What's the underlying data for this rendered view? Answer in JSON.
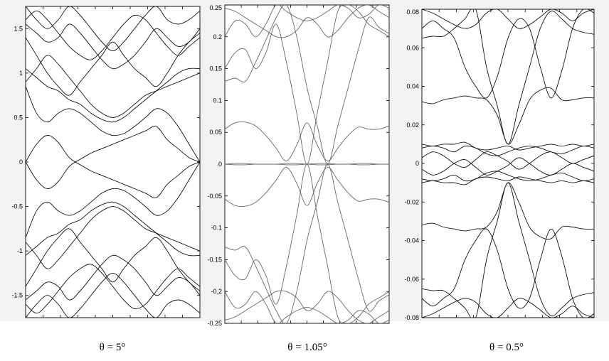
{
  "chart_data": [
    {
      "type": "line",
      "caption": "θ = 5°",
      "ylim": [
        -1.75,
        1.75
      ],
      "yticks": [
        -1.5,
        -1,
        -0.5,
        0,
        0.5,
        1,
        1.5
      ],
      "ytick_labels": [
        "-1.5",
        "-1",
        "-0.5",
        "0",
        "0.5",
        "1",
        "1.5"
      ],
      "xticks": 10,
      "grid": false,
      "line_color": "#111111",
      "x": [
        0,
        0.0625,
        0.125,
        0.1875,
        0.25,
        0.3125,
        0.375,
        0.4375,
        0.5,
        0.5625,
        0.625,
        0.6875,
        0.75,
        0.8125,
        0.875,
        0.9375,
        1
      ],
      "series": [
        {
          "values": [
            0.0,
            0.2,
            0.3,
            0.22,
            0.05,
            -0.03,
            -0.1,
            -0.15,
            -0.2,
            -0.25,
            -0.3,
            -0.35,
            -0.4,
            -0.25,
            -0.15,
            -0.05,
            0.0
          ]
        },
        {
          "values": [
            0.0,
            -0.2,
            -0.3,
            -0.22,
            -0.05,
            0.03,
            0.1,
            0.15,
            0.2,
            0.25,
            0.3,
            0.35,
            0.4,
            0.25,
            0.15,
            0.05,
            0.0
          ]
        },
        {
          "values": [
            0.85,
            0.55,
            0.45,
            0.55,
            0.6,
            0.55,
            0.45,
            0.35,
            0.3,
            0.32,
            0.4,
            0.5,
            0.6,
            0.55,
            0.4,
            0.2,
            0.0
          ]
        },
        {
          "values": [
            -0.85,
            -0.55,
            -0.45,
            -0.55,
            -0.6,
            -0.55,
            -0.45,
            -0.35,
            -0.3,
            -0.32,
            -0.4,
            -0.5,
            -0.6,
            -0.55,
            -0.4,
            -0.2,
            0.0
          ]
        },
        {
          "values": [
            0.9,
            1.05,
            1.2,
            1.1,
            0.95,
            0.8,
            0.65,
            0.55,
            0.5,
            0.55,
            0.65,
            0.75,
            0.8,
            0.85,
            0.9,
            0.95,
            1.0
          ]
        },
        {
          "values": [
            -0.9,
            -1.05,
            -1.2,
            -1.1,
            -0.95,
            -0.8,
            -0.65,
            -0.55,
            -0.5,
            -0.55,
            -0.65,
            -0.75,
            -0.8,
            -0.85,
            -0.9,
            -0.95,
            -1.0
          ]
        },
        {
          "values": [
            1.05,
            0.95,
            0.85,
            0.8,
            0.7,
            0.65,
            0.55,
            0.48,
            0.45,
            0.5,
            0.6,
            0.7,
            0.8,
            0.9,
            1.0,
            1.05,
            1.05
          ]
        },
        {
          "values": [
            -1.05,
            -0.95,
            -0.85,
            -0.8,
            -0.7,
            -0.65,
            -0.55,
            -0.48,
            -0.45,
            -0.5,
            -0.6,
            -0.7,
            -0.8,
            -0.9,
            -1.0,
            -1.05,
            -1.05
          ]
        },
        {
          "values": [
            1.4,
            1.2,
            1.0,
            0.85,
            0.75,
            0.9,
            1.05,
            1.2,
            1.35,
            1.2,
            1.05,
            0.95,
            0.85,
            1.0,
            1.2,
            1.35,
            1.45
          ]
        },
        {
          "values": [
            -1.4,
            -1.2,
            -1.0,
            -0.85,
            -0.75,
            -0.9,
            -1.05,
            -1.2,
            -1.35,
            -1.2,
            -1.05,
            -0.95,
            -0.85,
            -1.0,
            -1.2,
            -1.35,
            -1.45
          ]
        },
        {
          "values": [
            1.55,
            1.45,
            1.35,
            1.4,
            1.55,
            1.45,
            1.3,
            1.15,
            1.05,
            1.1,
            1.2,
            1.35,
            1.5,
            1.4,
            1.3,
            1.35,
            1.5
          ]
        },
        {
          "values": [
            -1.55,
            -1.45,
            -1.35,
            -1.4,
            -1.55,
            -1.45,
            -1.3,
            -1.15,
            -1.05,
            -1.1,
            -1.2,
            -1.35,
            -1.5,
            -1.4,
            -1.3,
            -1.35,
            -1.5
          ]
        },
        {
          "values": [
            1.75,
            1.6,
            1.5,
            1.6,
            1.75,
            1.65,
            1.5,
            1.35,
            1.25,
            1.35,
            1.5,
            1.65,
            1.75,
            1.6,
            1.55,
            1.6,
            1.7
          ]
        },
        {
          "values": [
            -1.75,
            -1.6,
            -1.5,
            -1.6,
            -1.75,
            -1.65,
            -1.5,
            -1.35,
            -1.25,
            -1.35,
            -1.5,
            -1.65,
            -1.75,
            -1.6,
            -1.55,
            -1.6,
            -1.7
          ]
        },
        {
          "values": [
            1.6,
            1.7,
            1.6,
            1.45,
            1.3,
            1.2,
            1.15,
            1.25,
            1.4,
            1.55,
            1.65,
            1.6,
            1.45,
            1.3,
            1.2,
            1.3,
            1.4
          ]
        },
        {
          "values": [
            -1.6,
            -1.7,
            -1.6,
            -1.45,
            -1.3,
            -1.2,
            -1.15,
            -1.25,
            -1.4,
            -1.55,
            -1.65,
            -1.6,
            -1.45,
            -1.3,
            -1.2,
            -1.3,
            -1.4
          ]
        }
      ]
    },
    {
      "type": "line",
      "caption": "θ = 1.05°",
      "ylim": [
        -0.25,
        0.25
      ],
      "yticks": [
        -0.25,
        -0.2,
        -0.15,
        -0.1,
        -0.05,
        0,
        0.05,
        0.1,
        0.15,
        0.2,
        0.25
      ],
      "ytick_labels": [
        "-0.25",
        "-0.2",
        "-0.15",
        "-0.1",
        "-0.05",
        "0",
        "0.05",
        "0.1",
        "0.15",
        "0.2",
        "0.25"
      ],
      "xticks": 10,
      "grid": false,
      "line_color": "#666666",
      "x": [
        0,
        0.0625,
        0.125,
        0.1875,
        0.25,
        0.3125,
        0.375,
        0.4375,
        0.5,
        0.5625,
        0.625,
        0.6875,
        0.75,
        0.8125,
        0.875,
        0.9375,
        1
      ],
      "series": [
        {
          "values": [
            0.0,
            0.001,
            0.001,
            0.0,
            0.0,
            0.0,
            0.001,
            0.001,
            0.0,
            -0.001,
            -0.001,
            0.0,
            0.0,
            0.001,
            0.001,
            0.0,
            0.0
          ]
        },
        {
          "values": [
            0.0,
            -0.001,
            -0.001,
            0.0,
            0.0,
            0.0,
            -0.001,
            -0.001,
            0.0,
            0.001,
            0.001,
            0.0,
            0.0,
            -0.001,
            -0.001,
            0.0,
            0.0
          ]
        },
        {
          "values": [
            0.055,
            0.065,
            0.066,
            0.06,
            0.045,
            0.025,
            0.005,
            0.03,
            0.065,
            0.03,
            0.005,
            0.025,
            0.045,
            0.058,
            0.055,
            0.055,
            0.06
          ]
        },
        {
          "values": [
            -0.055,
            -0.065,
            -0.066,
            -0.06,
            -0.045,
            -0.025,
            -0.005,
            -0.03,
            -0.065,
            -0.03,
            -0.005,
            -0.025,
            -0.045,
            -0.058,
            -0.055,
            -0.055,
            -0.06
          ]
        },
        {
          "values": [
            0.13,
            0.135,
            0.13,
            0.16,
            0.195,
            0.23,
            0.25,
            0.2,
            0.12,
            0.06,
            0.0,
            0.06,
            0.12,
            0.18,
            0.23,
            0.215,
            0.205
          ]
        },
        {
          "values": [
            -0.13,
            -0.135,
            -0.13,
            -0.16,
            -0.195,
            -0.23,
            -0.25,
            -0.2,
            -0.12,
            -0.06,
            0.0,
            -0.06,
            -0.12,
            -0.18,
            -0.23,
            -0.215,
            -0.205
          ]
        },
        {
          "values": [
            0.15,
            0.175,
            0.18,
            0.15,
            0.175,
            0.22,
            0.16,
            0.08,
            0.0,
            0.08,
            0.16,
            0.24,
            0.25,
            0.24,
            0.22,
            0.21,
            0.2
          ]
        },
        {
          "values": [
            -0.15,
            -0.175,
            -0.18,
            -0.15,
            -0.175,
            -0.22,
            -0.16,
            -0.08,
            0.0,
            -0.08,
            -0.16,
            -0.24,
            -0.25,
            -0.24,
            -0.22,
            -0.21,
            -0.2
          ]
        },
        {
          "values": [
            0.2,
            0.225,
            0.22,
            0.2,
            0.22,
            0.25,
            0.24,
            0.23,
            0.225,
            0.23,
            0.24,
            0.25,
            0.245,
            0.23,
            0.235,
            0.25,
            0.245
          ]
        },
        {
          "values": [
            -0.2,
            -0.225,
            -0.22,
            -0.2,
            -0.22,
            -0.25,
            -0.24,
            -0.23,
            -0.225,
            -0.23,
            -0.24,
            -0.25,
            -0.245,
            -0.23,
            -0.235,
            -0.25,
            -0.245
          ]
        },
        {
          "values": [
            0.245,
            0.24,
            0.23,
            0.22,
            0.21,
            0.2,
            0.2,
            0.21,
            0.23,
            0.22,
            0.2,
            0.21,
            0.23,
            0.245,
            0.25,
            0.24,
            0.23
          ]
        },
        {
          "values": [
            -0.245,
            -0.24,
            -0.23,
            -0.22,
            -0.21,
            -0.2,
            -0.2,
            -0.21,
            -0.23,
            -0.22,
            -0.2,
            -0.21,
            -0.23,
            -0.245,
            -0.25,
            -0.24,
            -0.23
          ]
        }
      ]
    },
    {
      "type": "line",
      "caption": "θ = 0.5°",
      "ylim": [
        -0.08,
        0.08
      ],
      "yticks": [
        -0.08,
        -0.06,
        -0.04,
        -0.02,
        0,
        0.02,
        0.04,
        0.06,
        0.08
      ],
      "ytick_labels": [
        "-0.08",
        "-0.06",
        "-0.04",
        "-0.02",
        "0",
        "0.02",
        "0.04",
        "0.06",
        "0.08"
      ],
      "xticks": 10,
      "grid": false,
      "line_color": "#111111",
      "x": [
        0,
        0.0625,
        0.125,
        0.1875,
        0.25,
        0.3125,
        0.375,
        0.4375,
        0.5,
        0.5625,
        0.625,
        0.6875,
        0.75,
        0.8125,
        0.875,
        0.9375,
        1
      ],
      "series": [
        {
          "values": [
            0.008,
            0.009,
            0.008,
            0.006,
            0.009,
            0.008,
            0.005,
            0.004,
            0.006,
            0.008,
            0.009,
            0.008,
            0.006,
            0.005,
            0.007,
            0.009,
            0.008
          ]
        },
        {
          "values": [
            -0.008,
            -0.009,
            -0.008,
            -0.006,
            -0.009,
            -0.008,
            -0.005,
            -0.004,
            -0.006,
            -0.008,
            -0.009,
            -0.008,
            -0.006,
            -0.005,
            -0.007,
            -0.009,
            -0.008
          ]
        },
        {
          "values": [
            0.003,
            0.006,
            0.004,
            0.0,
            -0.002,
            0.002,
            0.006,
            0.004,
            0.001,
            -0.003,
            0.0,
            0.004,
            0.006,
            0.003,
            0.0,
            0.002,
            0.004
          ]
        },
        {
          "values": [
            -0.003,
            -0.006,
            -0.004,
            0.0,
            0.002,
            -0.002,
            -0.006,
            -0.004,
            -0.001,
            0.003,
            0.0,
            -0.004,
            -0.006,
            -0.003,
            0.0,
            -0.002,
            -0.004
          ]
        },
        {
          "values": [
            0.01,
            0.009,
            0.01,
            0.01,
            0.011,
            0.008,
            0.007,
            0.008,
            0.009,
            0.007,
            0.008,
            0.009,
            0.01,
            0.009,
            0.01,
            0.009,
            0.01
          ]
        },
        {
          "values": [
            -0.01,
            -0.009,
            -0.01,
            -0.01,
            -0.011,
            -0.008,
            -0.007,
            -0.008,
            -0.009,
            -0.007,
            -0.008,
            -0.009,
            -0.01,
            -0.009,
            -0.01,
            -0.009,
            -0.01
          ]
        },
        {
          "values": [
            0.032,
            0.031,
            0.033,
            0.034,
            0.035,
            0.034,
            0.033,
            0.025,
            0.01,
            0.02,
            0.033,
            0.038,
            0.039,
            0.033,
            0.033,
            0.034,
            0.034
          ]
        },
        {
          "values": [
            -0.032,
            -0.031,
            -0.033,
            -0.034,
            -0.035,
            -0.034,
            -0.033,
            -0.025,
            -0.01,
            -0.02,
            -0.033,
            -0.038,
            -0.039,
            -0.033,
            -0.033,
            -0.034,
            -0.034
          ]
        },
        {
          "values": [
            0.065,
            0.066,
            0.066,
            0.07,
            0.075,
            0.08,
            0.05,
            0.03,
            0.01,
            0.03,
            0.05,
            0.07,
            0.079,
            0.075,
            0.07,
            0.068,
            0.067
          ]
        },
        {
          "values": [
            -0.065,
            -0.066,
            -0.066,
            -0.07,
            -0.075,
            -0.08,
            -0.05,
            -0.03,
            -0.01,
            -0.03,
            -0.05,
            -0.07,
            -0.079,
            -0.075,
            -0.07,
            -0.068,
            -0.067
          ]
        },
        {
          "values": [
            0.07,
            0.074,
            0.07,
            0.065,
            0.05,
            0.04,
            0.034,
            0.045,
            0.065,
            0.075,
            0.07,
            0.05,
            0.034,
            0.048,
            0.07,
            0.08,
            0.078
          ]
        },
        {
          "values": [
            -0.07,
            -0.074,
            -0.07,
            -0.065,
            -0.05,
            -0.04,
            -0.034,
            -0.045,
            -0.065,
            -0.075,
            -0.07,
            -0.05,
            -0.034,
            -0.048,
            -0.07,
            -0.08,
            -0.078
          ]
        },
        {
          "values": [
            0.08,
            0.078,
            0.075,
            0.072,
            0.07,
            0.072,
            0.078,
            0.08,
            0.075,
            0.07,
            0.072,
            0.076,
            0.08,
            0.078,
            0.074,
            0.078,
            0.08
          ]
        },
        {
          "values": [
            -0.08,
            -0.078,
            -0.075,
            -0.072,
            -0.07,
            -0.072,
            -0.078,
            -0.08,
            -0.075,
            -0.07,
            -0.072,
            -0.076,
            -0.08,
            -0.078,
            -0.074,
            -0.078,
            -0.08
          ]
        }
      ]
    }
  ],
  "colors": {
    "band": "#f2f2f2",
    "frame": "#000000"
  }
}
